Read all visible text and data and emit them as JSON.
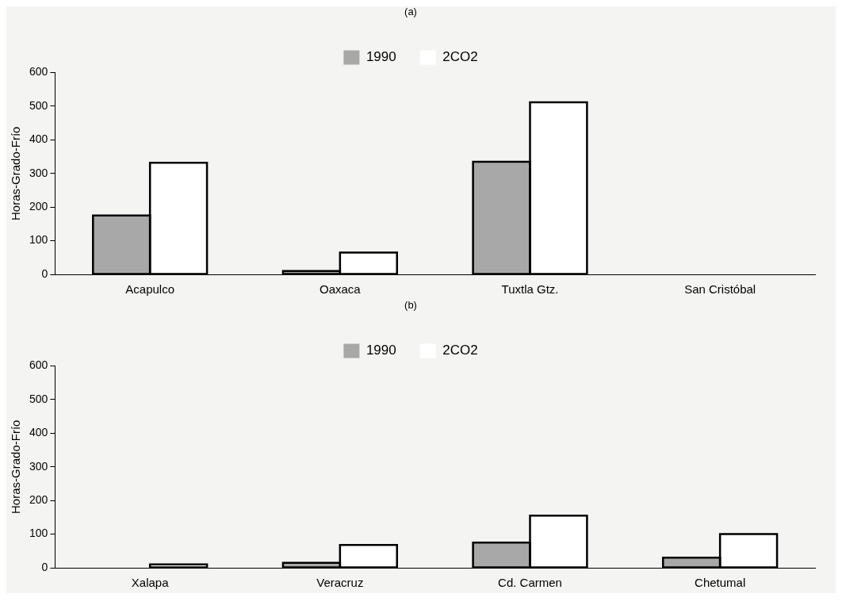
{
  "chart_data": [
    {
      "type": "bar",
      "title": "(a)",
      "ylabel": "Horas-Grado-Frío",
      "categories": [
        "Acapulco",
        "Oaxaca",
        "Tuxtla Gtz.",
        "San Cristóbal"
      ],
      "series": [
        {
          "name": "1990",
          "color": "#a8a8a8",
          "values": [
            175,
            10,
            335,
            0
          ]
        },
        {
          "name": "2CO2",
          "color": "#ffffff",
          "values": [
            332,
            65,
            512,
            0
          ]
        }
      ],
      "ylim": [
        0,
        600
      ],
      "yticks": [
        0,
        100,
        200,
        300,
        400,
        500,
        600
      ],
      "grid": false,
      "legend": "top"
    },
    {
      "type": "bar",
      "title": "(b)",
      "ylabel": "Horas-Grado-Frío",
      "categories": [
        "Xalapa",
        "Veracruz",
        "Cd. Carmen",
        "Chetumal"
      ],
      "series": [
        {
          "name": "1990",
          "color": "#a8a8a8",
          "values": [
            0,
            15,
            75,
            30
          ]
        },
        {
          "name": "2CO2",
          "color": "#ffffff",
          "values": [
            10,
            68,
            155,
            100
          ]
        }
      ],
      "ylim": [
        0,
        600
      ],
      "yticks": [
        0,
        100,
        200,
        300,
        400,
        500,
        600
      ],
      "grid": false,
      "legend": "top"
    }
  ]
}
